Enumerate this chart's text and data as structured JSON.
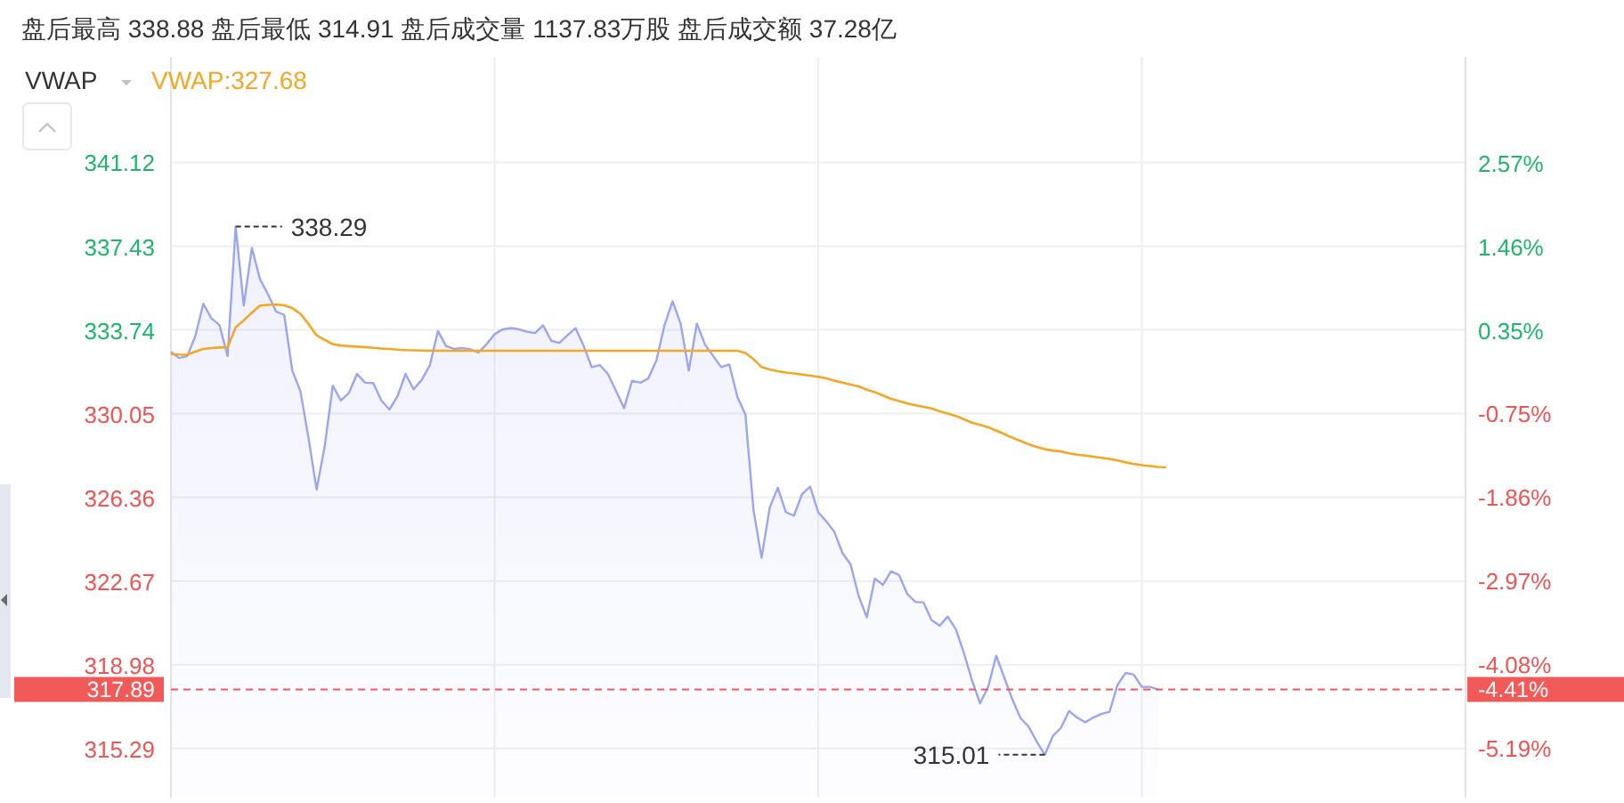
{
  "chart_data": {
    "type": "area",
    "title": "盘后最高 338.88 盘后最低 314.91 盘后成交量 1137.83万股 盘后成交额 37.28亿",
    "subtitle": "VWAP",
    "categories": [
      null,
      null,
      null,
      null,
      null,
      null,
      null,
      null,
      null,
      null,
      null,
      null,
      null,
      null,
      null,
      null,
      null,
      null,
      null,
      null,
      null,
      null,
      null,
      null,
      null,
      null,
      null,
      null,
      null,
      null,
      null,
      null,
      null,
      null,
      null,
      null,
      null,
      null,
      null,
      null,
      null,
      null,
      null,
      null,
      null,
      null,
      null,
      null,
      null,
      null,
      null,
      null,
      null,
      null,
      null,
      null,
      null,
      null,
      null,
      null,
      null,
      null,
      null,
      null,
      null,
      null,
      null,
      null,
      null,
      null,
      null,
      null,
      null,
      null,
      null,
      null,
      null,
      null,
      null,
      null,
      null,
      null,
      null,
      null,
      null,
      null,
      null,
      null,
      null,
      null,
      null,
      null,
      null,
      null,
      null,
      null,
      null,
      null,
      null,
      null,
      null,
      null,
      null,
      null,
      null,
      null,
      null,
      null,
      null,
      null,
      null,
      null,
      null,
      null,
      null,
      null,
      null,
      null,
      null,
      null,
      null,
      null,
      null,
      null,
      null,
      null,
      null,
      null,
      null,
      null,
      null,
      null,
      null,
      null,
      null,
      null,
      null,
      null,
      null,
      null,
      null,
      null,
      null,
      null,
      null,
      null,
      null,
      null,
      null,
      null,
      null,
      null,
      null,
      null,
      null,
      null,
      null,
      null,
      null,
      null,
      null
    ],
    "series": [
      {
        "color": "#9ba5f0",
        "values": [
          332.77,
          332.5,
          332.58,
          333.45,
          334.89,
          334.25,
          333.95,
          332.59,
          338.29,
          334.81,
          337.35,
          335.98,
          335.3,
          334.55,
          334.4,
          331.94,
          331.04,
          328.99,
          326.7,
          328.6,
          331.28,
          330.63,
          330.96,
          331.8,
          331.41,
          331.4,
          330.63,
          330.23,
          330.81,
          331.8,
          331.12,
          331.54,
          332.18,
          333.69,
          333.03,
          332.9,
          332.94,
          332.88,
          332.75,
          333.1,
          333.55,
          333.76,
          333.82,
          333.77,
          333.66,
          333.6,
          333.94,
          333.26,
          333.17,
          333.5,
          333.82,
          333.05,
          332.1,
          332.19,
          331.8,
          331.05,
          330.29,
          331.5,
          331.41,
          331.6,
          332.4,
          333.95,
          335.0,
          334.0,
          331.94,
          334.02,
          333.1,
          332.6,
          332.1,
          332.22,
          330.8,
          330.0,
          325.8,
          323.69,
          325.9,
          326.78,
          325.7,
          325.55,
          326.5,
          326.83,
          325.7,
          325.3,
          324.83,
          323.9,
          323.4,
          322.0,
          321.07,
          322.78,
          322.5,
          323.1,
          322.93,
          322.1,
          321.75,
          321.73,
          320.95,
          320.7,
          321.1,
          320.55,
          319.5,
          318.3,
          317.28,
          318.0,
          319.38,
          318.4,
          317.45,
          316.63,
          316.25,
          315.6,
          315.01,
          315.84,
          316.2,
          316.94,
          316.65,
          316.44,
          316.65,
          316.81,
          316.9,
          318.1,
          318.62,
          318.54,
          318.0,
          318.0,
          317.89,
          null,
          null,
          null,
          null,
          null,
          null,
          null,
          null,
          null,
          null,
          null,
          null,
          null,
          null,
          null,
          null,
          null,
          null,
          null,
          null,
          null,
          null,
          null,
          null,
          null,
          null,
          null,
          null,
          null,
          null,
          null,
          null,
          null,
          null,
          null,
          null,
          null,
          null
        ]
      },
      {
        "type": "line",
        "name": "VWAP:327.68",
        "color": "#f5a623",
        "values": [
          332.67,
          332.65,
          332.64,
          332.78,
          332.9,
          332.94,
          332.96,
          332.98,
          333.85,
          334.16,
          334.5,
          334.81,
          334.84,
          334.86,
          334.82,
          334.7,
          334.45,
          334.0,
          333.5,
          333.3,
          333.11,
          333.05,
          333.02,
          333.0,
          332.98,
          332.95,
          332.92,
          332.9,
          332.87,
          332.85,
          332.84,
          332.83,
          332.82,
          332.82,
          332.82,
          332.82,
          332.82,
          332.82,
          332.82,
          332.82,
          332.82,
          332.82,
          332.82,
          332.82,
          332.82,
          332.82,
          332.82,
          332.82,
          332.82,
          332.82,
          332.82,
          332.82,
          332.82,
          332.82,
          332.82,
          332.82,
          332.82,
          332.82,
          332.82,
          332.82,
          332.82,
          332.82,
          332.82,
          332.82,
          332.82,
          332.82,
          332.82,
          332.82,
          332.82,
          332.82,
          332.82,
          332.72,
          332.45,
          332.1,
          332.0,
          331.92,
          331.86,
          331.82,
          331.77,
          331.72,
          331.67,
          331.6,
          331.5,
          331.42,
          331.33,
          331.25,
          331.1,
          331.0,
          330.85,
          330.7,
          330.6,
          330.5,
          330.42,
          330.35,
          330.28,
          330.15,
          330.05,
          329.95,
          329.8,
          329.65,
          329.55,
          329.45,
          329.3,
          329.15,
          328.98,
          328.85,
          328.7,
          328.58,
          328.48,
          328.42,
          328.38,
          328.3,
          328.24,
          328.2,
          328.15,
          328.1,
          328.05,
          327.98,
          327.9,
          327.83,
          327.78,
          327.74,
          327.7,
          327.68,
          null,
          null,
          null,
          null,
          null,
          null,
          null,
          null,
          null,
          null,
          null,
          null,
          null,
          null,
          null,
          null,
          null,
          null,
          null,
          null,
          null,
          null,
          null,
          null,
          null,
          null,
          null,
          null,
          null,
          null,
          null,
          null,
          null,
          null,
          null,
          null,
          null
        ]
      }
    ],
    "ylim": [
      313.12,
      345.77
    ],
    "yticks": [
      315.29,
      318.98,
      322.67,
      326.36,
      330.05,
      333.74,
      337.43,
      341.12
    ],
    "y2lim": [
      -5.85,
      3.97
    ],
    "y2ticks": [
      {
        "value": -5.19,
        "label": "-5.19%"
      },
      {
        "value": -4.08,
        "label": "-4.08%"
      },
      {
        "value": -2.97,
        "label": "-2.97%"
      },
      {
        "value": -1.86,
        "label": "-1.86%"
      },
      {
        "value": -0.75,
        "label": "-0.75%"
      },
      {
        "value": 0.35,
        "label": "0.35%"
      },
      {
        "value": 1.46,
        "label": "1.46%"
      },
      {
        "value": 2.57,
        "label": "2.57%"
      }
    ],
    "ref_lines": [
      {
        "axis": "y",
        "value": 317.89,
        "label": "317.89",
        "color": "#f25a5a",
        "line_style": "dashed"
      }
    ],
    "annotations": [
      "338.29",
      "315.01",
      "-4.41%"
    ],
    "grid": true,
    "legend": "top left"
  }
}
